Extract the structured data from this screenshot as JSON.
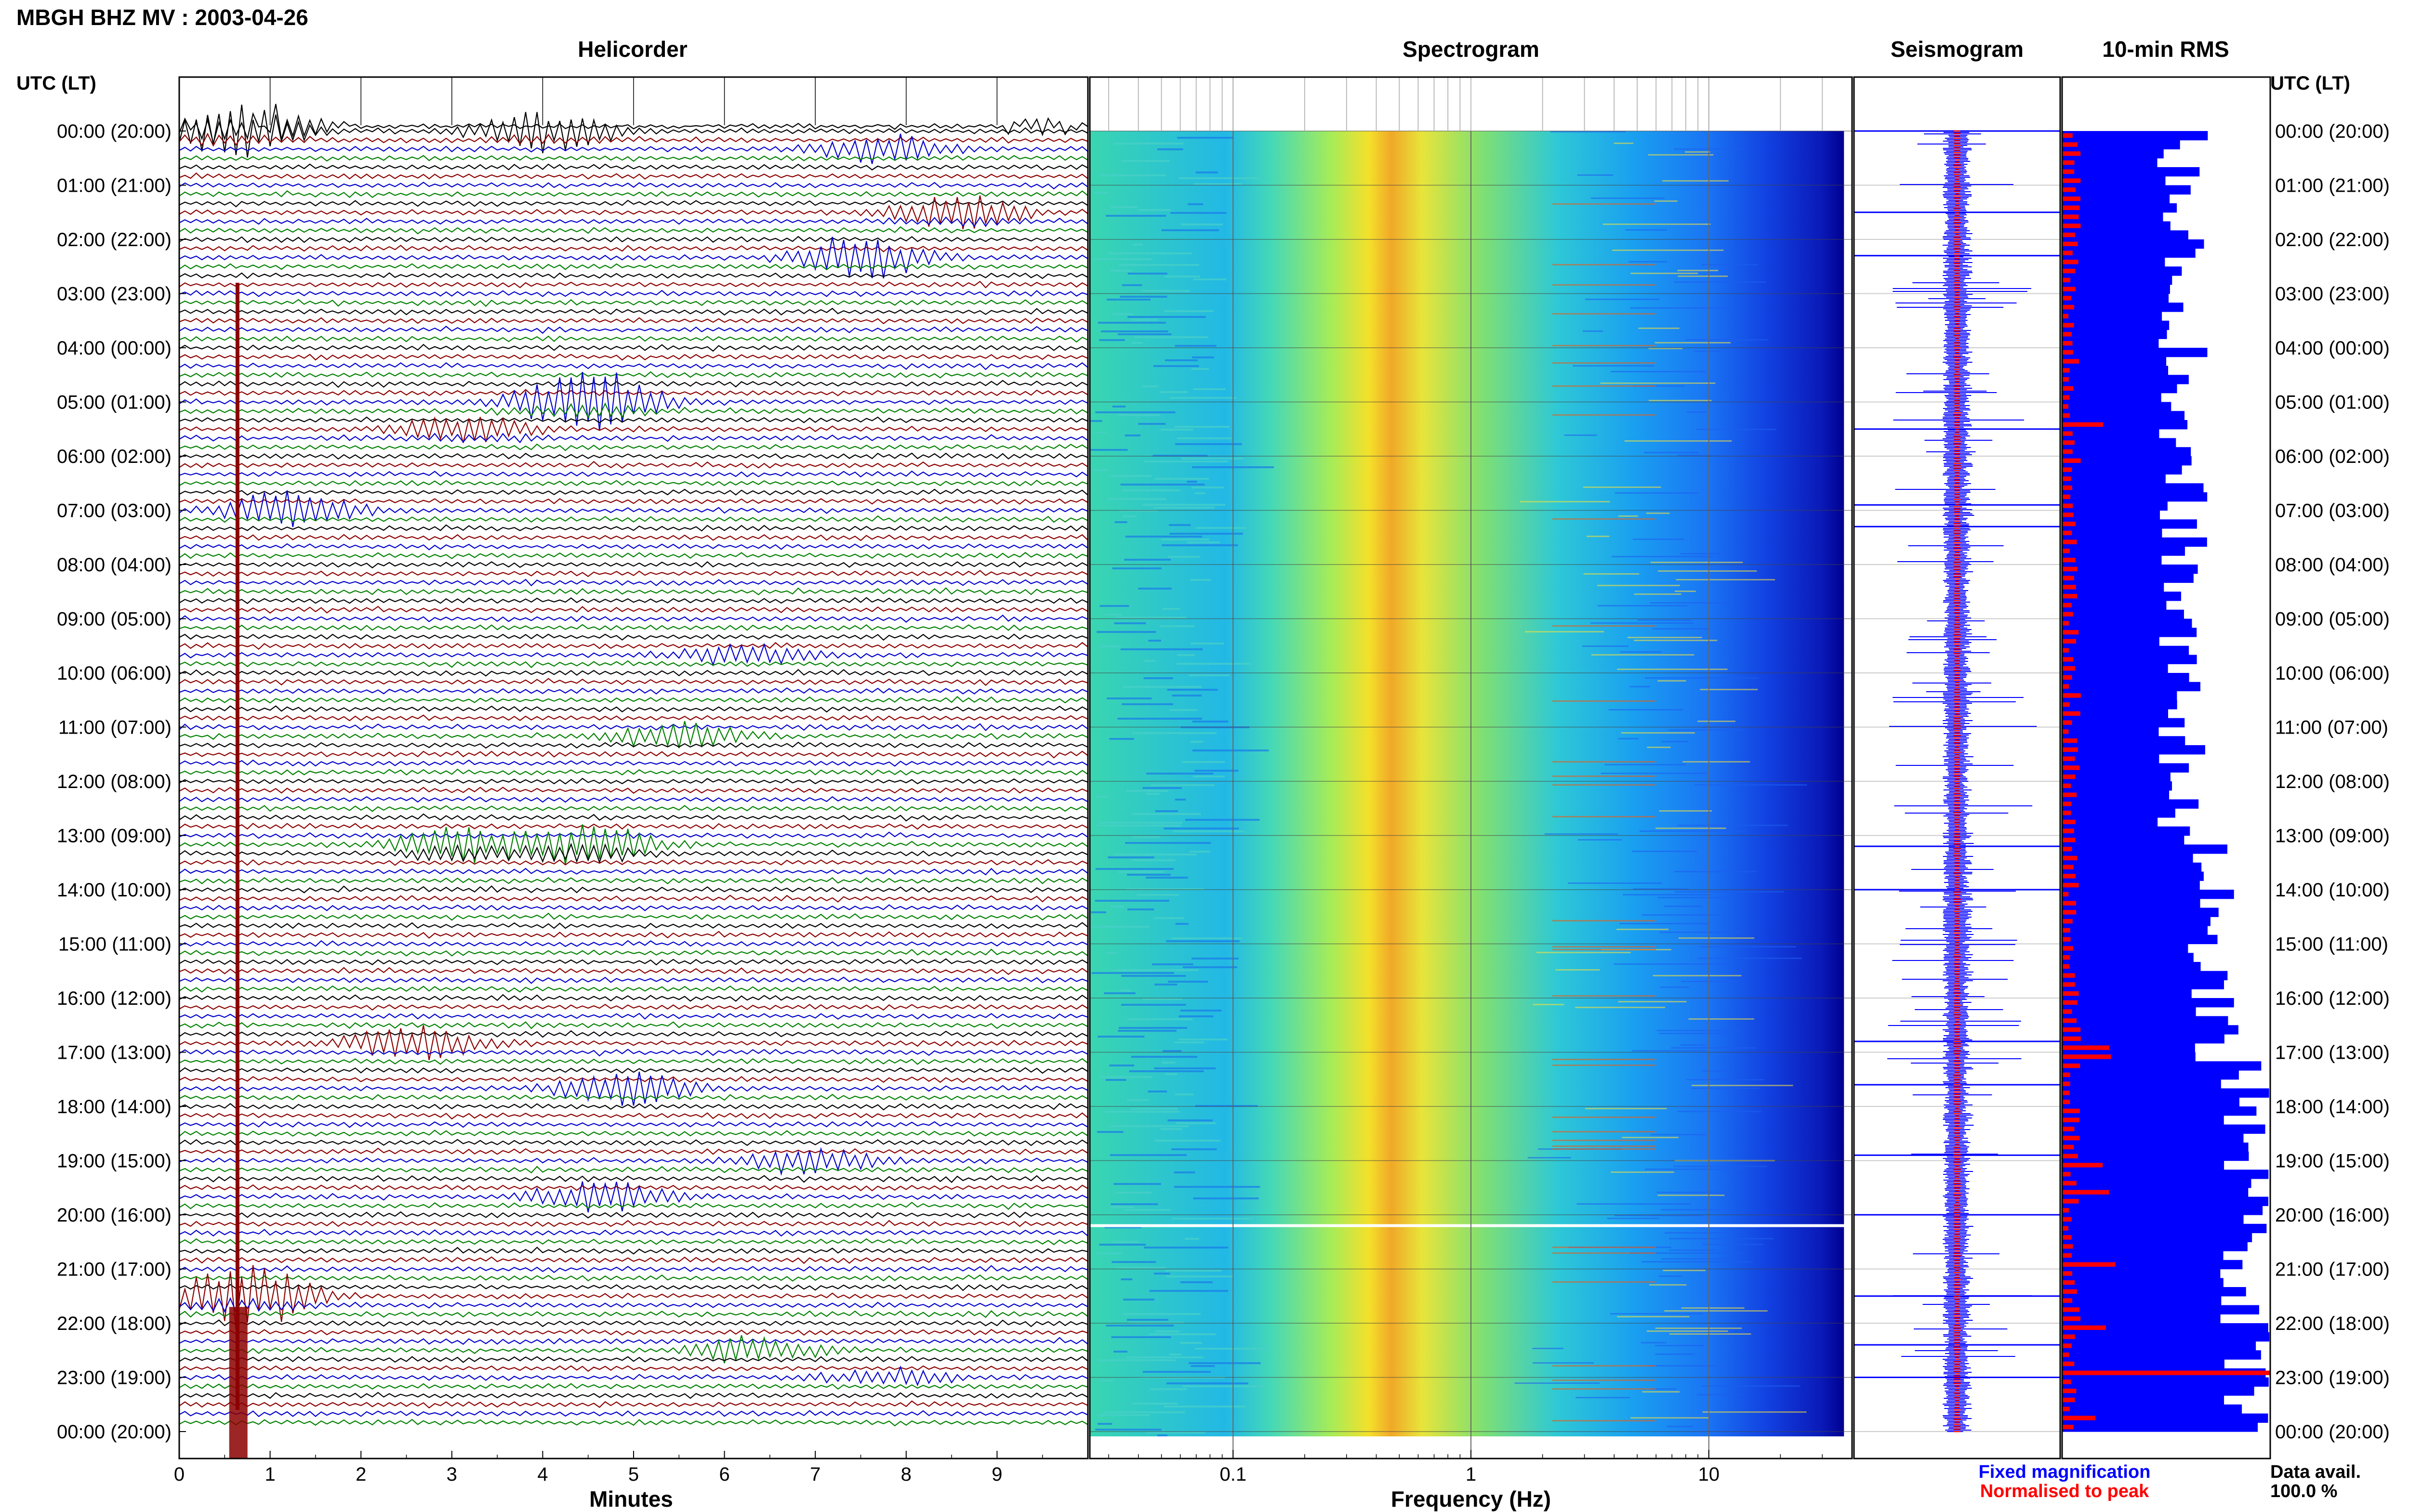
{
  "chart_data": {
    "type": "heatmap",
    "title": "MBGH BHZ MV : 2003-04-26",
    "y_axis_label": "UTC (LT)",
    "y_ticks_left": [
      "00:00 (20:00)",
      "01:00 (21:00)",
      "02:00 (22:00)",
      "03:00 (23:00)",
      "04:00 (00:00)",
      "05:00 (01:00)",
      "06:00 (02:00)",
      "07:00 (03:00)",
      "08:00 (04:00)",
      "09:00 (05:00)",
      "10:00 (06:00)",
      "11:00 (07:00)",
      "12:00 (08:00)",
      "13:00 (09:00)",
      "14:00 (10:00)",
      "15:00 (11:00)",
      "16:00 (12:00)",
      "17:00 (13:00)",
      "18:00 (14:00)",
      "19:00 (15:00)",
      "20:00 (16:00)",
      "21:00 (17:00)",
      "22:00 (18:00)",
      "23:00 (19:00)",
      "00:00 (20:00)"
    ],
    "panels": [
      {
        "name": "Helicorder",
        "xlabel": "Minutes",
        "xlim": [
          0,
          10
        ],
        "x_ticks": [
          "0",
          "1",
          "2",
          "3",
          "4",
          "5",
          "6",
          "7",
          "8",
          "9"
        ],
        "trace_colors": [
          "#000000",
          "#8b0000",
          "#0000cd",
          "#008000"
        ],
        "events": [
          {
            "hour": 0.0,
            "minute": 0.6,
            "amp": 4
          },
          {
            "hour": 0.0,
            "minute": 4.0,
            "amp": 3
          },
          {
            "hour": 0.3,
            "minute": 7.8,
            "amp": 2.5
          },
          {
            "hour": 1.5,
            "minute": 8.6,
            "amp": 2.5
          },
          {
            "hour": 2.3,
            "minute": 7.5,
            "amp": 4
          },
          {
            "hour": 5.0,
            "minute": 4.5,
            "amp": 5
          },
          {
            "hour": 5.5,
            "minute": 3.2,
            "amp": 2
          },
          {
            "hour": 6.9,
            "minute": 1.2,
            "amp": 6
          },
          {
            "hour": 9.6,
            "minute": 6.2,
            "amp": 2.5
          },
          {
            "hour": 11.1,
            "minute": 5.5,
            "amp": 3
          },
          {
            "hour": 13.2,
            "minute": 4.5,
            "amp": 3.5
          },
          {
            "hour": 13.2,
            "minute": 3.1,
            "amp": 3
          },
          {
            "hour": 16.8,
            "minute": 2.6,
            "amp": 3
          },
          {
            "hour": 17.6,
            "minute": 4.9,
            "amp": 4
          },
          {
            "hour": 18.9,
            "minute": 6.9,
            "amp": 4
          },
          {
            "hour": 19.6,
            "minute": 4.6,
            "amp": 3.5
          },
          {
            "hour": 22.4,
            "minute": 6.3,
            "amp": 4
          },
          {
            "hour": 22.9,
            "minute": 7.8,
            "amp": 2.5
          },
          {
            "hour": 21.5,
            "minute": 0.7,
            "amp": 5
          }
        ]
      },
      {
        "name": "Spectrogram",
        "xlabel": "Frequency (Hz)",
        "x_scale": "log",
        "xlim": [
          0.025,
          40
        ],
        "x_ticks": [
          "0.1",
          "1",
          "10"
        ],
        "colormap": [
          "#0000a0",
          "#0033ff",
          "#00aaff",
          "#33ddcc",
          "#88ee66",
          "#ffee22",
          "#ff8800",
          "#cc0000"
        ],
        "peak_frequency_hz": 0.42,
        "gap_hour": 20.2
      },
      {
        "name": "Seismogram",
        "colors": {
          "fixed": "#0000ff",
          "normalised": "#ff0000"
        },
        "spikes_hours": [
          0.0,
          1.5,
          2.3,
          5.5,
          6.9,
          7.3,
          13.2,
          14.0,
          16.8,
          17.6,
          18.9,
          20.0,
          21.5,
          22.4,
          23.0
        ]
      },
      {
        "name": "10-min RMS",
        "colors": {
          "fixed": "#0000ff",
          "normalised": "#ff0000"
        }
      }
    ],
    "legend": {
      "position": "bottom-right",
      "entries": [
        {
          "label": "Fixed magnification",
          "color": "#0000ff"
        },
        {
          "label": "Normalised to peak",
          "color": "#ff0000"
        }
      ]
    },
    "annotation": {
      "label": "Data avail.",
      "value": "100.0 %"
    }
  }
}
